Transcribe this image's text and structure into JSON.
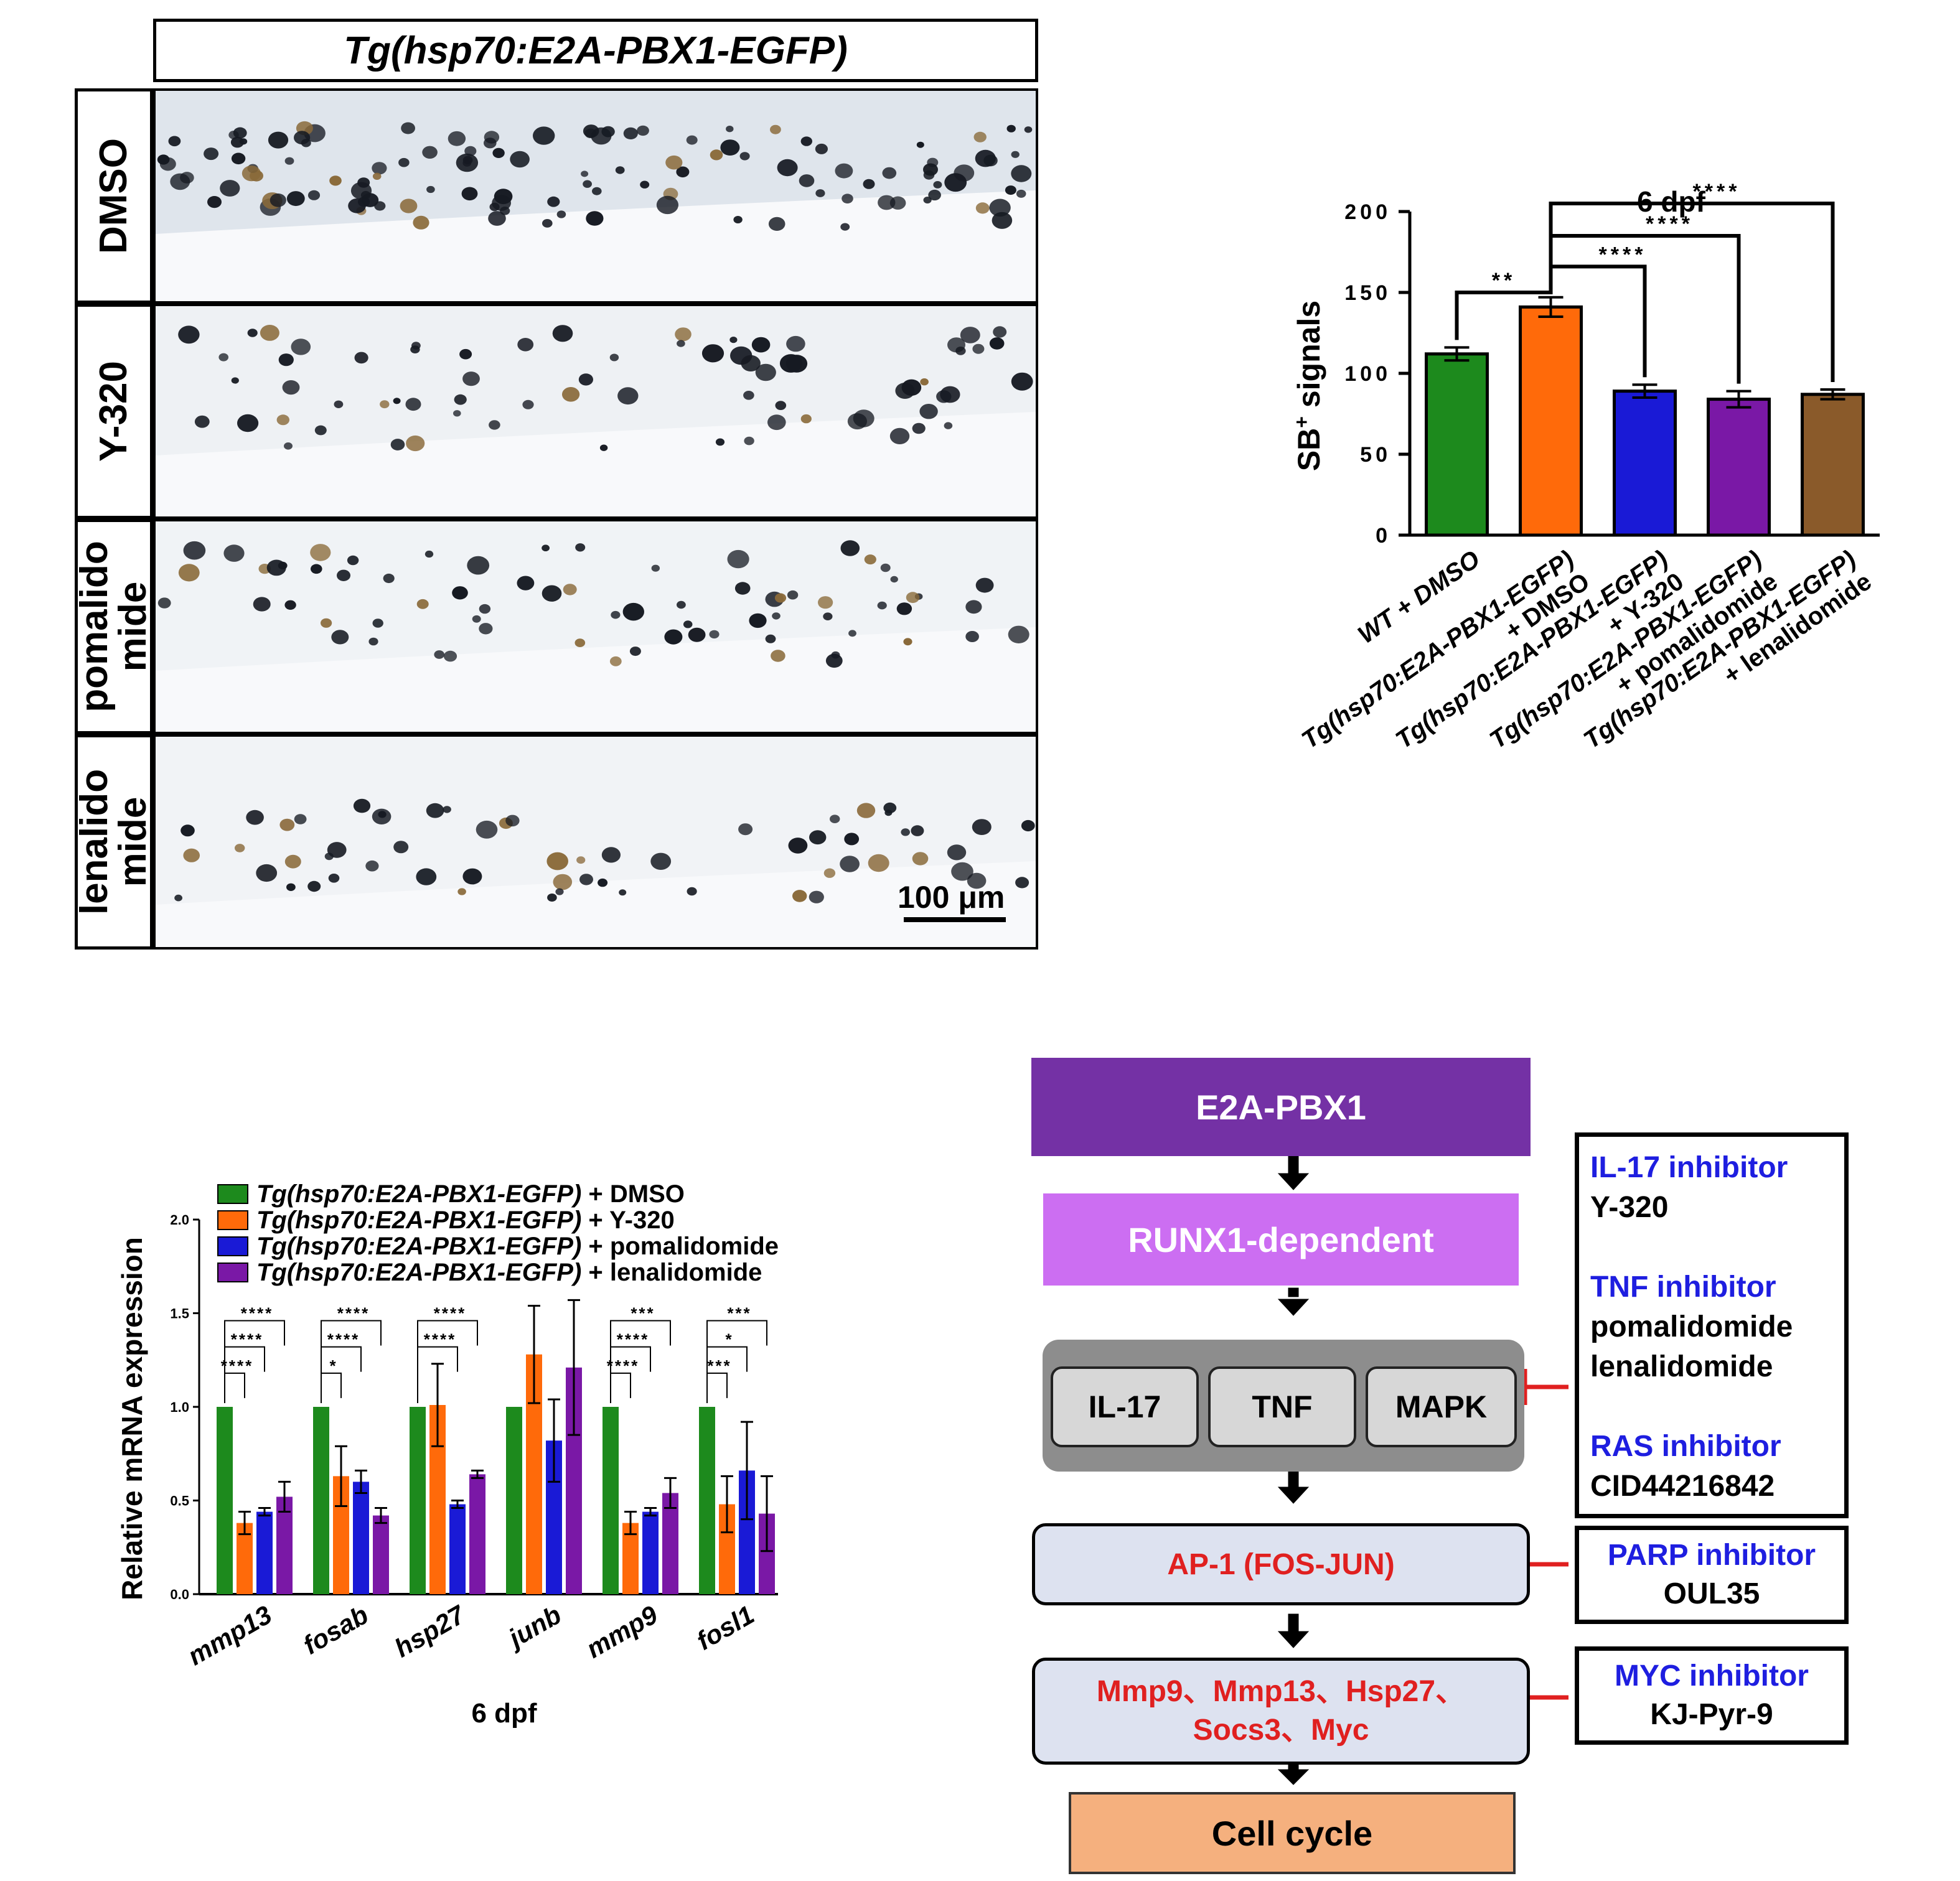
{
  "panel_a": {
    "title": "Tg(hsp70:E2A-PBX1-EGFP)",
    "rows": [
      {
        "label": "DMSO"
      },
      {
        "label": "Y-320"
      },
      {
        "label_l1": "pomalido",
        "label_l2": "mide"
      },
      {
        "label_l1": "lenalido",
        "label_l2": "mide"
      }
    ],
    "scale_bar": "100 μm"
  },
  "chart_data": [
    {
      "type": "bar",
      "title": "6 dpf",
      "ylabel_main": "SB",
      "ylabel_sup": "+",
      "ylabel_rest": " signals",
      "ylim": [
        0,
        200
      ],
      "yticks": [
        "0",
        "50",
        "100",
        "150",
        "200"
      ],
      "categories": [
        [
          "WT + DMSO"
        ],
        [
          "Tg(hsp70:E2A-PBX1-EGFP)",
          "+ DMSO"
        ],
        [
          "Tg(hsp70:E2A-PBX1-EGFP)",
          "+ Y-320"
        ],
        [
          "Tg(hsp70:E2A-PBX1-EGFP)",
          "+ pomalidomide"
        ],
        [
          "Tg(hsp70:E2A-PBX1-EGFP)",
          "+ lenalidomide"
        ]
      ],
      "values": [
        112,
        141,
        89,
        84,
        87
      ],
      "errors": [
        4,
        6,
        4,
        5,
        3
      ],
      "colors": [
        "#1d8a1d",
        "#ff6a0a",
        "#1a1ad6",
        "#7a18a6",
        "#8a5a2a"
      ],
      "significance": [
        {
          "label": "**"
        },
        {
          "label": "****"
        },
        {
          "label": "****"
        },
        {
          "label": "****"
        }
      ]
    },
    {
      "type": "bar",
      "title": "",
      "xlabel": "6 dpf",
      "ylabel": "Relative mRNA expression",
      "ylim": [
        0,
        2.0
      ],
      "yticks": [
        "0.0",
        "0.5",
        "1.0",
        "1.5",
        "2.0"
      ],
      "categories": [
        "mmp13",
        "fosab",
        "hsp27",
        "junb",
        "mmp9",
        "fosl1"
      ],
      "legend_suffixes": [
        "+ DMSO",
        "+ Y-320",
        "+ pomalidomide",
        "+ lenalidomide"
      ],
      "legend_prefix": "Tg(hsp70:E2A-PBX1-EGFP)",
      "series": [
        {
          "name": "Tg(hsp70:E2A-PBX1-EGFP) + DMSO",
          "color": "#1d8a1d",
          "values": [
            1.0,
            1.0,
            1.0,
            1.0,
            1.0,
            1.0
          ],
          "errors": [
            0,
            0,
            0,
            0,
            0,
            0
          ]
        },
        {
          "name": "Tg(hsp70:E2A-PBX1-EGFP) + Y-320",
          "color": "#ff6a0a",
          "values": [
            0.38,
            0.63,
            1.01,
            1.28,
            0.38,
            0.48
          ],
          "errors": [
            0.06,
            0.16,
            0.22,
            0.26,
            0.06,
            0.15
          ]
        },
        {
          "name": "Tg(hsp70:E2A-PBX1-EGFP) + pomalidomide",
          "color": "#1a1ad6",
          "values": [
            0.44,
            0.6,
            0.48,
            0.82,
            0.44,
            0.66
          ],
          "errors": [
            0.02,
            0.06,
            0.02,
            0.22,
            0.02,
            0.26
          ]
        },
        {
          "name": "Tg(hsp70:E2A-PBX1-EGFP) + lenalidomide",
          "color": "#7a18a6",
          "values": [
            0.52,
            0.42,
            0.64,
            1.21,
            0.54,
            0.43
          ],
          "errors": [
            0.08,
            0.04,
            0.02,
            0.36,
            0.08,
            0.2
          ]
        }
      ],
      "significance": [
        [
          "****",
          "****",
          "****"
        ],
        [
          "*",
          "****",
          "****"
        ],
        [
          "",
          "****",
          "****"
        ],
        [
          "",
          "",
          ""
        ],
        [
          "****",
          "****",
          "***"
        ],
        [
          "***",
          "*",
          "***"
        ]
      ]
    }
  ],
  "pathway": {
    "top": "E2A-PBX1",
    "runx": "RUNX1-dependent",
    "signals": [
      "IL-17",
      "TNF",
      "MAPK"
    ],
    "ap1": "AP-1 (FOS-JUN)",
    "targets_l1": "Mmp9、Mmp13、Hsp27、",
    "targets_l2": "Socs3、Myc",
    "end": "Cell cycle",
    "inhibitor_box1": [
      {
        "title": "IL-17 inhibitor",
        "drugs": [
          "Y-320"
        ]
      },
      {
        "title": "TNF inhibitor",
        "drugs": [
          "pomalidomide",
          "lenalidomide"
        ]
      },
      {
        "title": "RAS inhibitor",
        "drugs": [
          "CID44216842"
        ]
      }
    ],
    "inhibitor_box2": {
      "title": "PARP inhibitor",
      "drug": "OUL35"
    },
    "inhibitor_box3": {
      "title": "MYC inhibitor",
      "drug": "KJ-Pyr-9"
    }
  }
}
